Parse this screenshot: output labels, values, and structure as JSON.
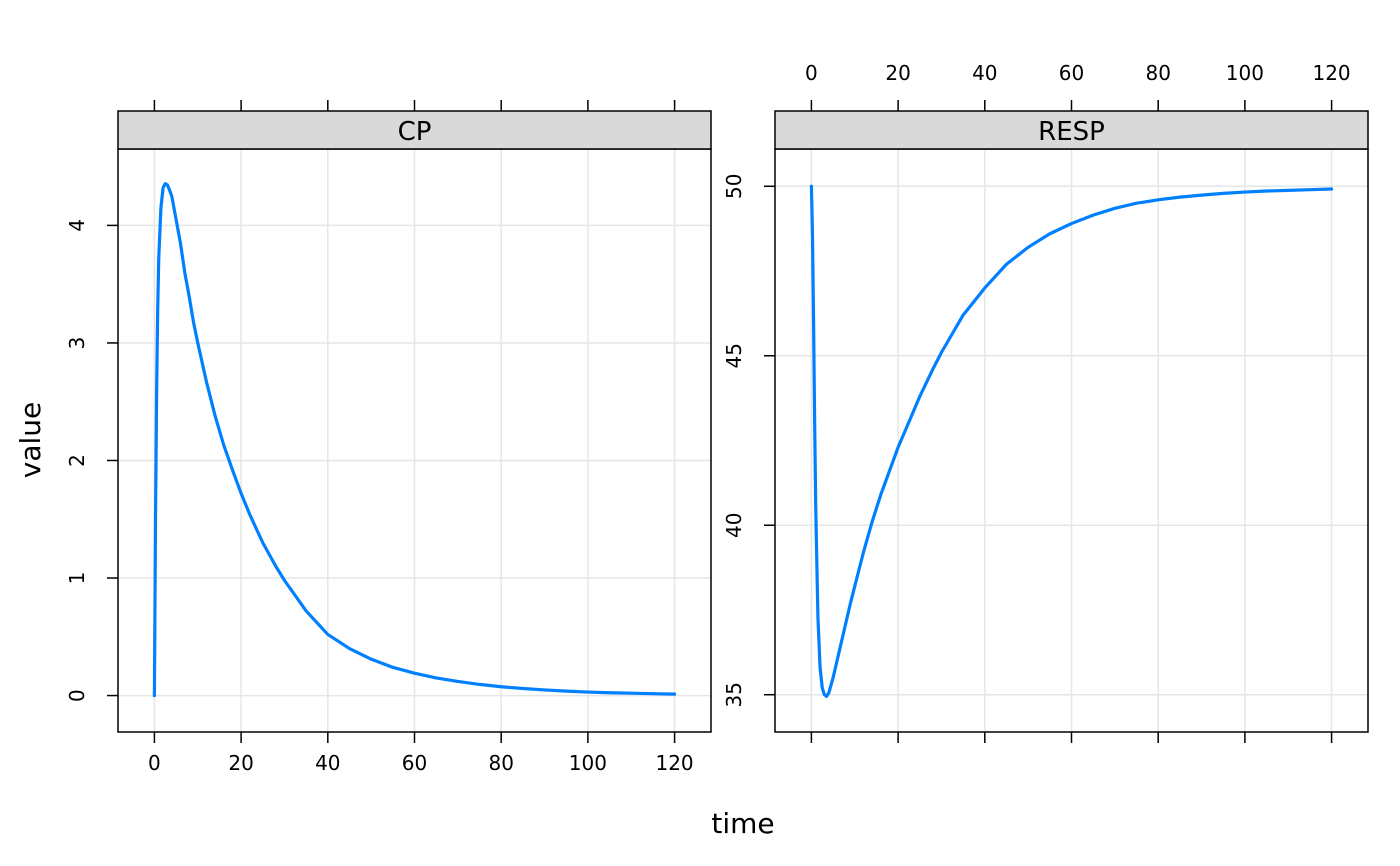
{
  "chart_data": {
    "type": "line",
    "xlabel": "time",
    "ylabel": "value",
    "line_color": "#0080ff",
    "grid_color": "#e6e6e6",
    "strip_color": "#d9d9d9",
    "panels": [
      {
        "name": "CP",
        "xlim": [
          -8.4,
          128.4
        ],
        "ylim": [
          -0.31,
          4.65
        ],
        "x_ticks": [
          0,
          20,
          40,
          60,
          80,
          100,
          120
        ],
        "y_ticks": [
          0,
          1,
          2,
          3,
          4
        ],
        "x": [
          0,
          0.25,
          0.5,
          0.75,
          1,
          1.5,
          2,
          2.5,
          3,
          3.5,
          4,
          5,
          6,
          7,
          8,
          9,
          10,
          12,
          14,
          16,
          18,
          20,
          22,
          25,
          28,
          30,
          35,
          40,
          45,
          50,
          55,
          60,
          65,
          70,
          75,
          80,
          85,
          90,
          95,
          100,
          105,
          110,
          115,
          120
        ],
        "values": [
          0,
          1.5,
          2.55,
          3.27,
          3.72,
          4.15,
          4.32,
          4.355,
          4.345,
          4.3,
          4.25,
          4.05,
          3.85,
          3.6,
          3.4,
          3.18,
          3.0,
          2.67,
          2.38,
          2.13,
          1.92,
          1.72,
          1.54,
          1.3,
          1.1,
          0.98,
          0.72,
          0.52,
          0.4,
          0.31,
          0.24,
          0.19,
          0.15,
          0.12,
          0.095,
          0.075,
          0.06,
          0.048,
          0.038,
          0.03,
          0.024,
          0.02,
          0.016,
          0.012
        ]
      },
      {
        "name": "RESP",
        "xlim": [
          -8.4,
          128.4
        ],
        "ylim": [
          33.9,
          51.1
        ],
        "x_ticks": [
          0,
          20,
          40,
          60,
          80,
          100,
          120
        ],
        "y_ticks": [
          35,
          40,
          45,
          50
        ],
        "x": [
          0,
          0.25,
          0.5,
          0.75,
          1,
          1.5,
          2,
          2.5,
          3,
          3.5,
          4,
          5,
          6,
          7,
          8,
          9,
          10,
          12,
          14,
          16,
          18,
          20,
          22,
          25,
          28,
          30,
          35,
          40,
          45,
          50,
          55,
          60,
          65,
          70,
          75,
          80,
          85,
          90,
          95,
          100,
          105,
          110,
          115,
          120
        ],
        "values": [
          50,
          48.5,
          46.0,
          43.0,
          40.5,
          37.3,
          35.8,
          35.2,
          35.0,
          34.95,
          35.05,
          35.5,
          36.05,
          36.6,
          37.15,
          37.7,
          38.2,
          39.2,
          40.1,
          40.9,
          41.6,
          42.3,
          42.9,
          43.8,
          44.6,
          45.1,
          46.2,
          47.0,
          47.7,
          48.2,
          48.6,
          48.9,
          49.15,
          49.35,
          49.5,
          49.6,
          49.68,
          49.74,
          49.79,
          49.83,
          49.86,
          49.88,
          49.9,
          49.92
        ]
      }
    ]
  }
}
